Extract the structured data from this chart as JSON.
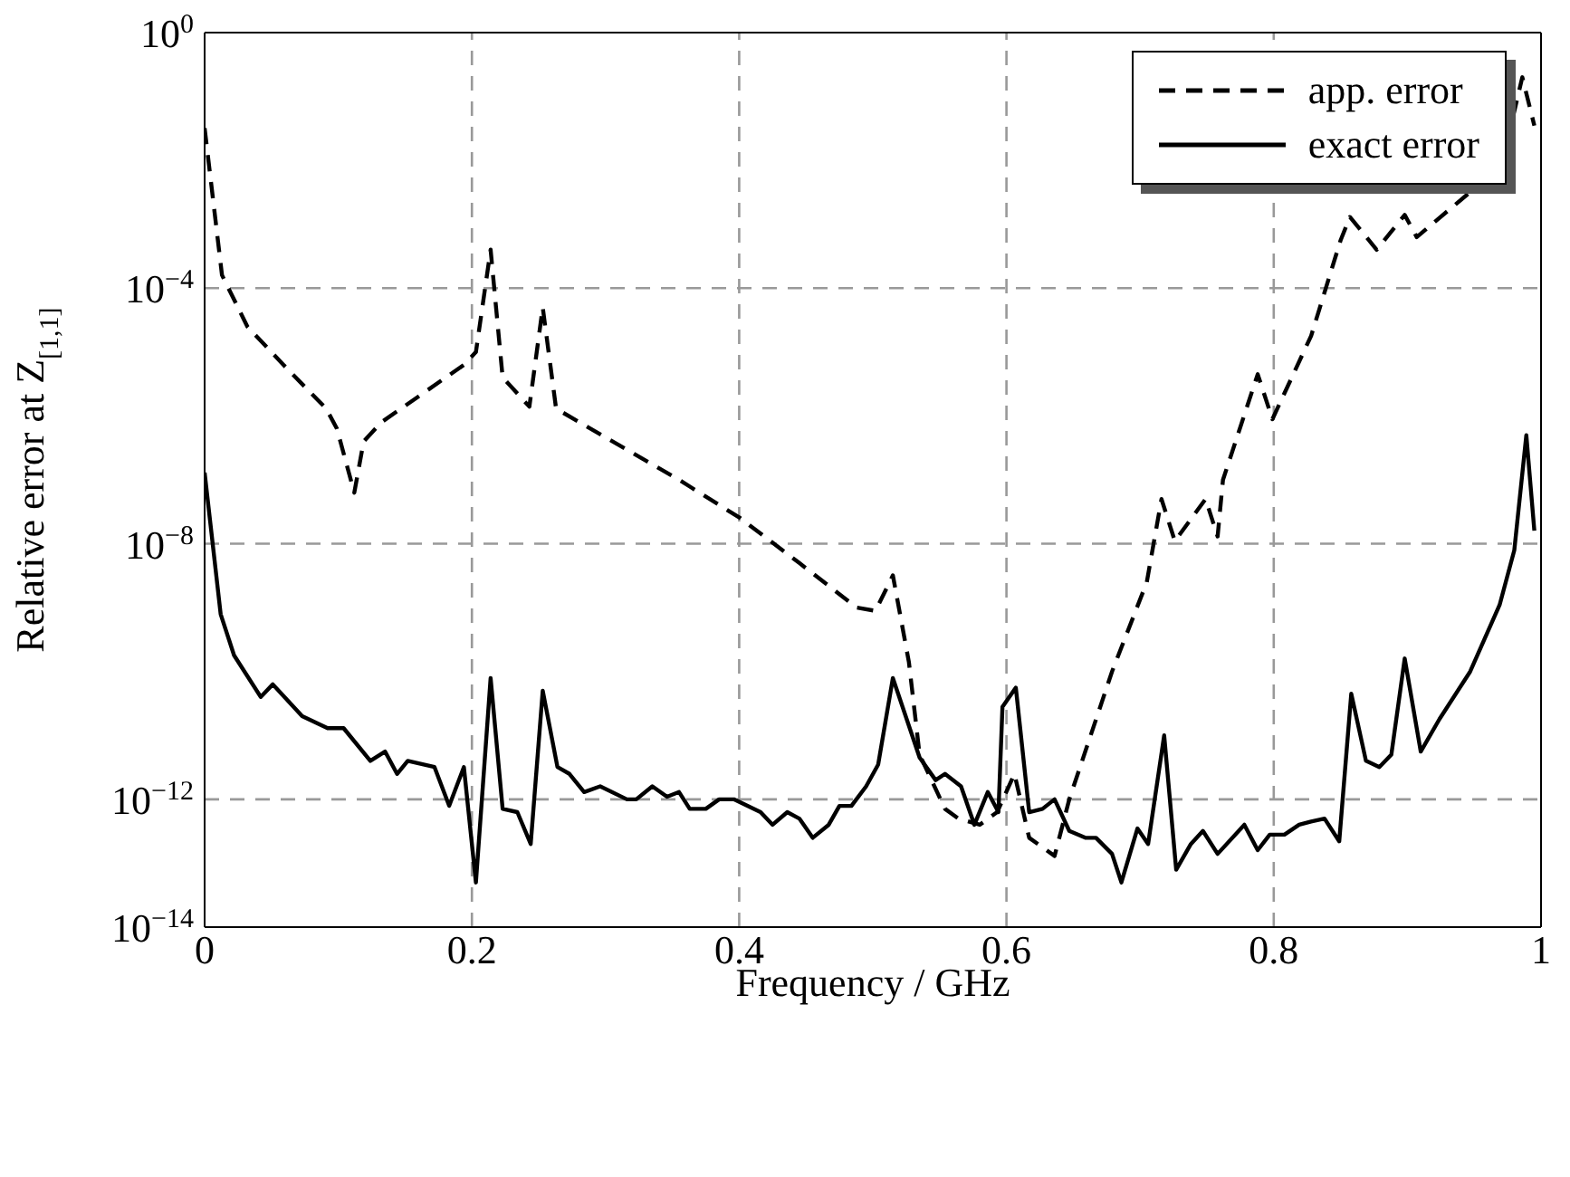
{
  "chart_data": {
    "type": "line",
    "xlabel": "Frequency / GHz",
    "ylabel": "Relative error at Z$_{[1,1]}$",
    "log": "y",
    "grid": true,
    "legend": "top right",
    "marker": "none",
    "xlim": [
      0,
      1
    ],
    "xticks": [
      0,
      0.2,
      0.4,
      0.6,
      0.8,
      1
    ],
    "ylim": [
      1e-14,
      1
    ],
    "yticks": [
      {
        "value": 1e-14,
        "label": "10$^{−14}$"
      },
      {
        "value": 1e-12,
        "label": "10$^{−12}$"
      },
      {
        "value": 1e-08,
        "label": "10$^{−8}$"
      },
      {
        "value": 0.0001,
        "label": "10$^{−4}$"
      },
      {
        "value": 1,
        "label": "10$^{0}$"
      }
    ],
    "series": [
      {
        "name": "app. error",
        "color": "#000000",
        "line_style": "dashed",
        "x": [
          0,
          0.013,
          0.032,
          0.059,
          0.091,
          0.099,
          0.112,
          0.119,
          0.132,
          0.194,
          0.203,
          0.214,
          0.223,
          0.243,
          0.253,
          0.263,
          0.355,
          0.401,
          0.445,
          0.488,
          0.502,
          0.515,
          0.527,
          0.535,
          0.554,
          0.564,
          0.58,
          0.593,
          0.606,
          0.617,
          0.636,
          0.647,
          0.679,
          0.705,
          0.716,
          0.726,
          0.749,
          0.758,
          0.762,
          0.788,
          0.799,
          0.828,
          0.85,
          0.857,
          0.877,
          0.898,
          0.907,
          0.947,
          0.973,
          0.986,
          0.995
        ],
        "values": [
          0.032,
          0.00016,
          2.5e-05,
          6.3e-06,
          1.3e-06,
          6.3e-07,
          6.3e-08,
          4e-07,
          7.9e-07,
          6.3e-06,
          1e-05,
          0.0004,
          4e-06,
          1.4e-06,
          5e-05,
          1.3e-06,
          1e-07,
          2.5e-08,
          5e-09,
          1e-09,
          8.9e-10,
          3.2e-09,
          1.4e-10,
          5e-12,
          7.1e-13,
          5e-13,
          4e-13,
          6.3e-13,
          2.5e-12,
          2.5e-13,
          1.3e-13,
          1e-12,
          1e-10,
          2.5e-09,
          5e-08,
          1.1e-08,
          5e-08,
          1.3e-08,
          1e-07,
          4.5e-06,
          8.9e-07,
          1.8e-05,
          0.00056,
          0.0013,
          0.0004,
          0.0014,
          0.00063,
          0.0032,
          0.014,
          0.2,
          0.035
        ]
      },
      {
        "name": "exact error",
        "color": "#000000",
        "line_style": "solid",
        "x": [
          0,
          0.012,
          0.022,
          0.042,
          0.051,
          0.073,
          0.092,
          0.104,
          0.124,
          0.135,
          0.144,
          0.152,
          0.172,
          0.183,
          0.194,
          0.203,
          0.214,
          0.223,
          0.234,
          0.244,
          0.253,
          0.264,
          0.273,
          0.284,
          0.296,
          0.316,
          0.323,
          0.335,
          0.346,
          0.355,
          0.363,
          0.375,
          0.385,
          0.396,
          0.416,
          0.425,
          0.436,
          0.445,
          0.455,
          0.467,
          0.475,
          0.484,
          0.495,
          0.504,
          0.515,
          0.535,
          0.547,
          0.554,
          0.566,
          0.576,
          0.586,
          0.594,
          0.597,
          0.607,
          0.617,
          0.627,
          0.636,
          0.647,
          0.659,
          0.667,
          0.679,
          0.686,
          0.698,
          0.706,
          0.718,
          0.727,
          0.738,
          0.747,
          0.758,
          0.778,
          0.788,
          0.797,
          0.808,
          0.819,
          0.828,
          0.838,
          0.849,
          0.858,
          0.869,
          0.879,
          0.888,
          0.898,
          0.91,
          0.924,
          0.947,
          0.969,
          0.98,
          0.989,
          0.995
        ],
        "values": [
          1.3e-07,
          7.9e-10,
          1.8e-10,
          4e-11,
          6.3e-11,
          2e-11,
          1.3e-11,
          1.3e-11,
          4e-12,
          5.6e-12,
          2.5e-12,
          4e-12,
          3.2e-12,
          7.9e-13,
          3.2e-12,
          5e-14,
          7.9e-11,
          7.1e-13,
          6.3e-13,
          2e-13,
          5e-11,
          3.2e-12,
          2.5e-12,
          1.3e-12,
          1.6e-12,
          1e-12,
          1e-12,
          1.6e-12,
          1.1e-12,
          1.3e-12,
          7.1e-13,
          7.1e-13,
          1e-12,
          1e-12,
          6.3e-13,
          4e-13,
          6.3e-13,
          5e-13,
          2.5e-13,
          4e-13,
          7.9e-13,
          7.9e-13,
          1.6e-12,
          3.5e-12,
          7.9e-11,
          4.5e-12,
          2e-12,
          2.5e-12,
          1.6e-12,
          4e-13,
          1.3e-12,
          6.3e-13,
          2.8e-11,
          5.6e-11,
          6.3e-13,
          7.1e-13,
          1e-12,
          3.2e-13,
          2.5e-13,
          2.5e-13,
          1.4e-13,
          5e-14,
          3.5e-13,
          2e-13,
          1e-11,
          7.9e-14,
          2e-13,
          3.2e-13,
          1.4e-13,
          4e-13,
          1.6e-13,
          2.8e-13,
          2.8e-13,
          4e-13,
          4.5e-13,
          5e-13,
          2.2e-13,
          4.5e-11,
          4e-12,
          3.2e-12,
          5e-12,
          1.6e-10,
          5.6e-12,
          1.8e-11,
          1e-10,
          1.1e-09,
          7.9e-09,
          5e-07,
          1.6e-08
        ]
      }
    ]
  }
}
